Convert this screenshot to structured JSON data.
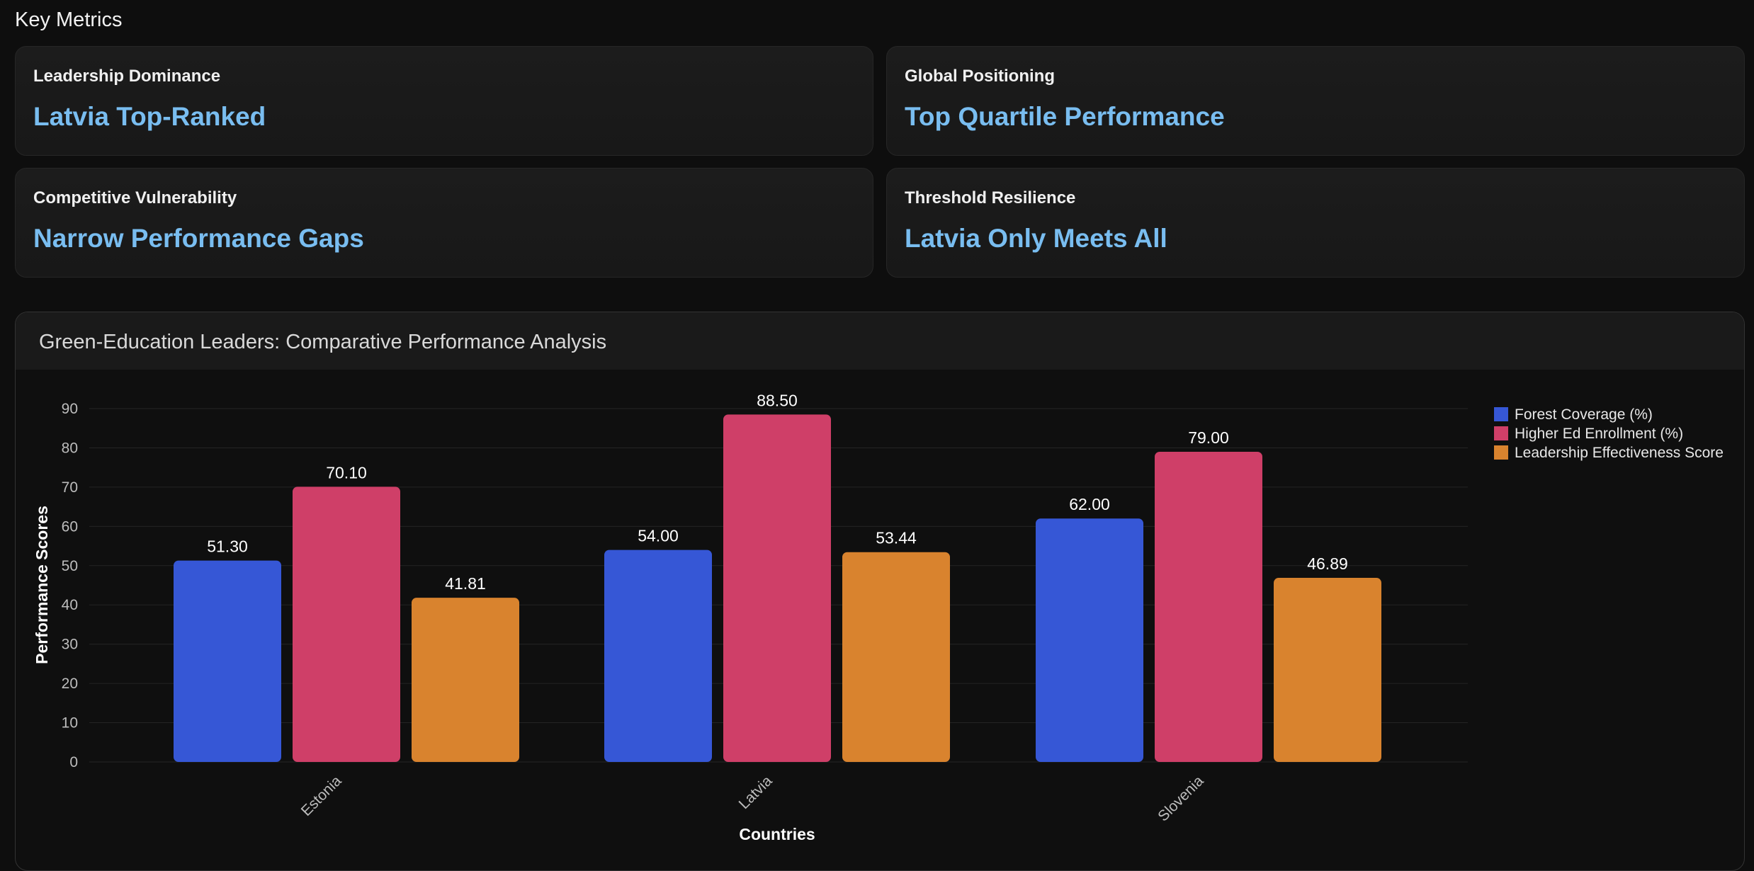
{
  "section_title": "Key Metrics",
  "cards": [
    {
      "label": "Leadership Dominance",
      "value": "Latvia Top-Ranked"
    },
    {
      "label": "Global Positioning",
      "value": "Top Quartile Performance"
    },
    {
      "label": "Competitive Vulnerability",
      "value": "Narrow Performance Gaps"
    },
    {
      "label": "Threshold Resilience",
      "value": "Latvia Only Meets All"
    }
  ],
  "chart_title": "Green-Education Leaders: Comparative Performance Analysis",
  "chart_data": {
    "type": "bar",
    "title": "Green-Education Leaders: Comparative Performance Analysis",
    "categories": [
      "Estonia",
      "Latvia",
      "Slovenia"
    ],
    "series": [
      {
        "name": "Forest Coverage (%)",
        "values": [
          51.3,
          54.0,
          62.0
        ],
        "color": "#3657d6"
      },
      {
        "name": "Higher Ed Enrollment (%)",
        "values": [
          70.1,
          88.5,
          79.0
        ],
        "color": "#cf3f68"
      },
      {
        "name": "Leadership Effectiveness Score",
        "values": [
          41.81,
          53.44,
          46.89
        ],
        "color": "#d9832e"
      }
    ],
    "xlabel": "Countries",
    "ylabel": "Performance Scores",
    "ylim": [
      0,
      90
    ],
    "yticks": [
      0,
      10,
      20,
      30,
      40,
      50,
      60,
      70,
      80,
      90
    ],
    "grid": true,
    "legend": "top-right",
    "label_format": "2 decimals"
  }
}
